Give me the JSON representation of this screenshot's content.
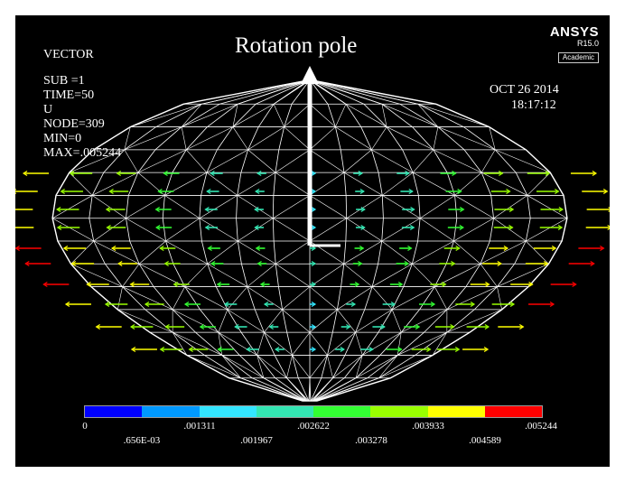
{
  "info": {
    "line1": "VECTOR",
    "line2": "SUB =1",
    "line3": "TIME=50",
    "line4": "U",
    "line5": "NODE=309",
    "line6": "MIN=0",
    "line7": "MAX=.005244"
  },
  "title": "Rotation pole",
  "logo": {
    "brand": "ANSYS",
    "version": "R15.0",
    "edition": "Academic"
  },
  "date": "OCT 26 2014",
  "time": "18:17:12",
  "legend": {
    "colors": [
      "#0000ff",
      "#0099ff",
      "#33e5ff",
      "#33e5b2",
      "#33ff33",
      "#99ff00",
      "#ffff00",
      "#ff0000"
    ],
    "labels_top": [
      "0",
      ".001311",
      ".002622",
      ".003933",
      ".005244"
    ],
    "labels_bottom": [
      ".656E-03",
      ".001967",
      ".003278",
      ".004589"
    ]
  },
  "icons": {
    "arrow": "rotation-pole-arrow"
  }
}
